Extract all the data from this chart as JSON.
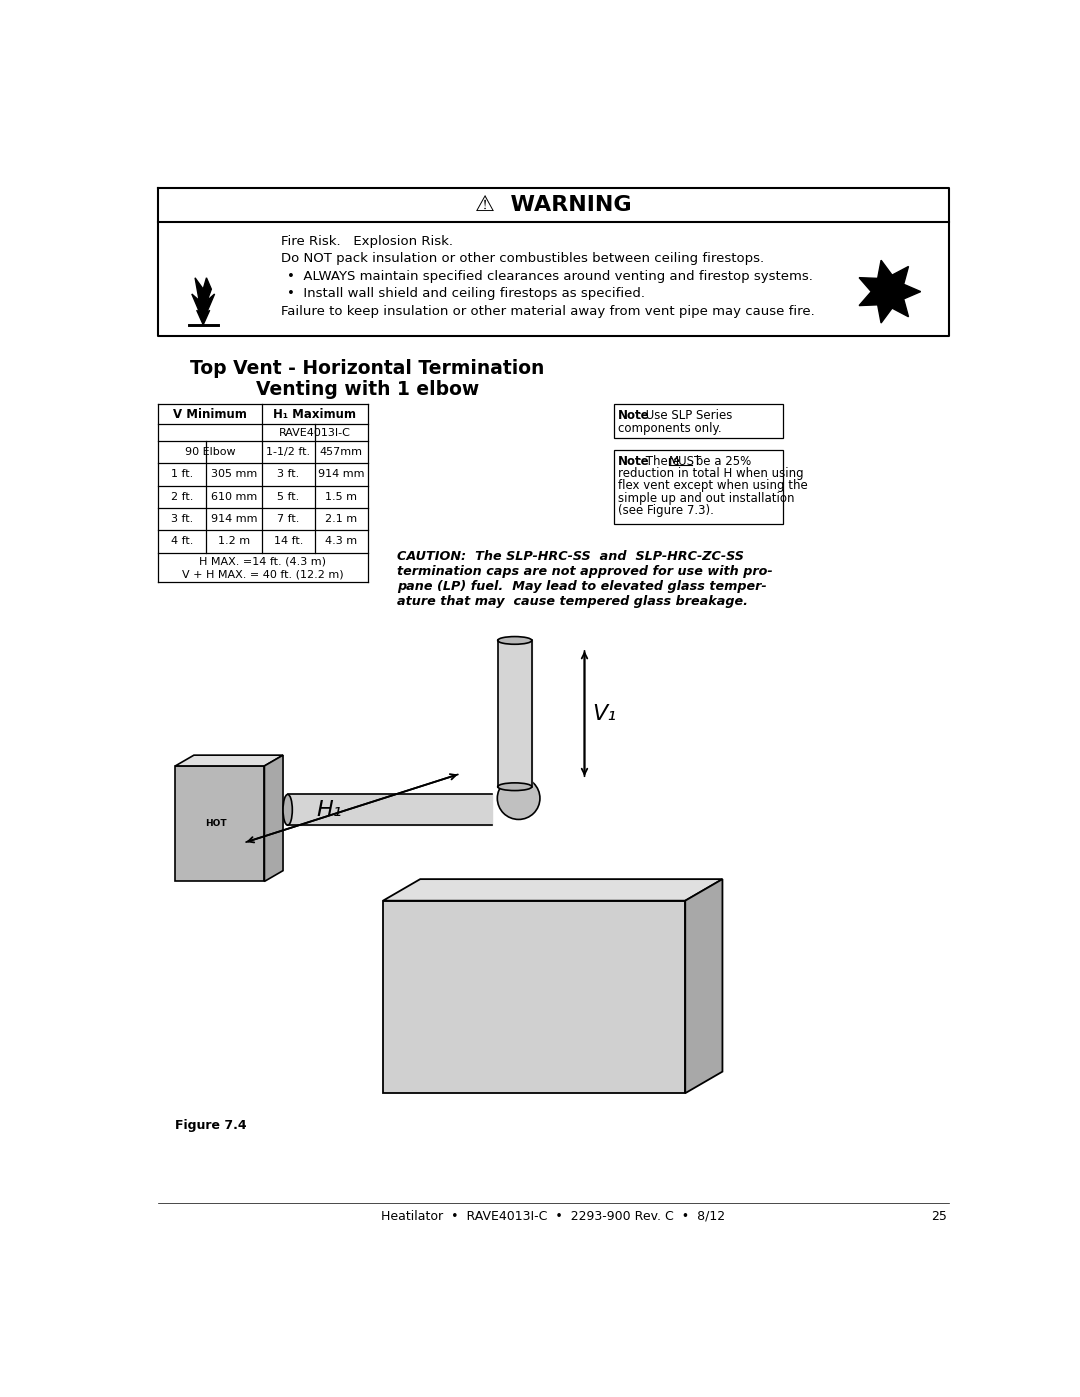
{
  "page_bg": "#ffffff",
  "warning_title": "⚠  WARNING",
  "warning_line1": "Fire Risk.   Explosion Risk.",
  "warning_line2": "Do NOT pack insulation or other combustibles between ceiling firestops.",
  "warning_bullet1": "ALWAYS maintain specified clearances around venting and firestop systems.",
  "warning_bullet2": "Install wall shield and ceiling firestops as specified.",
  "warning_line3": "Failure to keep insulation or other material away from vent pipe may cause fire.",
  "section_title1": "Top Vent - Horizontal Termination",
  "section_title2": "Venting with 1 elbow",
  "table_footer1": "H MAX. =14 ft. (4.3 m)",
  "table_footer2": "V + H MAX. = 40 ft. (12.2 m)",
  "caution_text": "CAUTION:  The SLP-HRC-SS  and  SLP-HRC-ZC-SS\ntermination caps are not approved for use with pro-\npane (LP) fuel.  May lead to elevated glass temper-\nature that may  cause tempered glass breakage.",
  "figure_label": "Figure 7.4",
  "footer_text": "Heatilator  •  RAVE4013I-C  •  2293-900 Rev. C  •  8/12",
  "footer_page": "25",
  "table_data": [
    [
      "90 Elbow",
      "",
      "1-1/2 ft.",
      "457mm"
    ],
    [
      "1 ft.",
      "305 mm",
      "3 ft.",
      "914 mm"
    ],
    [
      "2 ft.",
      "610 mm",
      "5 ft.",
      "1.5 m"
    ],
    [
      "3 ft.",
      "914 mm",
      "7 ft.",
      "2.1 m"
    ],
    [
      "4 ft.",
      "1.2 m",
      "14 ft.",
      "4.3 m"
    ]
  ]
}
